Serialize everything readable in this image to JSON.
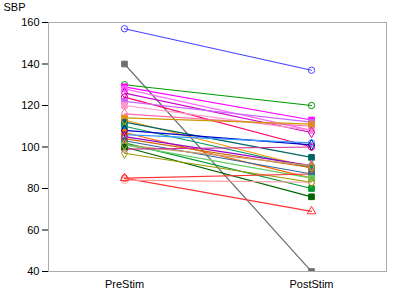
{
  "chart_data": {
    "type": "line",
    "categories": [
      "PreStim",
      "PostStim"
    ],
    "ylabel": "SBP",
    "ylim": [
      40,
      160
    ],
    "yticks": [
      40,
      60,
      80,
      100,
      120,
      140,
      160
    ],
    "series": [
      {
        "color": "#4444ff",
        "marker": "circle-open",
        "values": [
          157,
          137
        ]
      },
      {
        "color": "#707070",
        "marker": "square",
        "values": [
          140,
          40
        ]
      },
      {
        "color": "#009900",
        "marker": "circle-open",
        "values": [
          130,
          120
        ]
      },
      {
        "color": "#ff00ff",
        "marker": "square",
        "values": [
          129,
          113
        ]
      },
      {
        "color": "#ff66ff",
        "marker": "square",
        "values": [
          128,
          108
        ]
      },
      {
        "color": "#cc00cc",
        "marker": "diamond-open",
        "values": [
          126,
          107
        ]
      },
      {
        "color": "#ff0066",
        "marker": "circle-open",
        "values": [
          124,
          100
        ]
      },
      {
        "color": "#cc66ff",
        "marker": "square",
        "values": [
          122,
          112
        ]
      },
      {
        "color": "#ff99cc",
        "marker": "square",
        "values": [
          120,
          108
        ]
      },
      {
        "color": "#ff66aa",
        "marker": "diamond-open",
        "values": [
          116,
          110
        ]
      },
      {
        "color": "#cc9900",
        "marker": "square",
        "values": [
          114,
          111
        ]
      },
      {
        "color": "#ff9900",
        "marker": "diamond-open",
        "values": [
          113,
          90
        ]
      },
      {
        "color": "#006666",
        "marker": "square",
        "values": [
          112,
          95
        ]
      },
      {
        "color": "#009966",
        "marker": "square",
        "values": [
          110,
          90
        ]
      },
      {
        "color": "#0000cc",
        "marker": "diamond-open",
        "values": [
          108,
          101
        ]
      },
      {
        "color": "#ff6600",
        "marker": "square",
        "values": [
          107,
          85
        ]
      },
      {
        "color": "#3399ff",
        "marker": "circle-open",
        "values": [
          106,
          102
        ]
      },
      {
        "color": "#9900cc",
        "marker": "diamond-open",
        "values": [
          105,
          91
        ]
      },
      {
        "color": "#cc6600",
        "marker": "diamond-open",
        "values": [
          104,
          90
        ]
      },
      {
        "color": "#336699",
        "marker": "square",
        "values": [
          103,
          87
        ]
      },
      {
        "color": "#009933",
        "marker": "square",
        "values": [
          102,
          80
        ]
      },
      {
        "color": "#cc9966",
        "marker": "diamond-open",
        "values": [
          101,
          91
        ]
      },
      {
        "color": "#66cc66",
        "marker": "square",
        "values": [
          101,
          85
        ]
      },
      {
        "color": "#006600",
        "marker": "square",
        "values": [
          100,
          76
        ]
      },
      {
        "color": "#cc3399",
        "marker": "circle-open",
        "values": [
          99,
          100
        ]
      },
      {
        "color": "#999900",
        "marker": "diamond-open",
        "values": [
          97,
          83
        ]
      },
      {
        "color": "#ff3333",
        "marker": "circle-open",
        "values": [
          85,
          87
        ]
      },
      {
        "color": "#ff3333",
        "marker": "triangle-open",
        "values": [
          85,
          69
        ]
      },
      {
        "color": "#ff9999",
        "marker": "circle-open",
        "values": [
          84,
          83
        ]
      }
    ]
  }
}
